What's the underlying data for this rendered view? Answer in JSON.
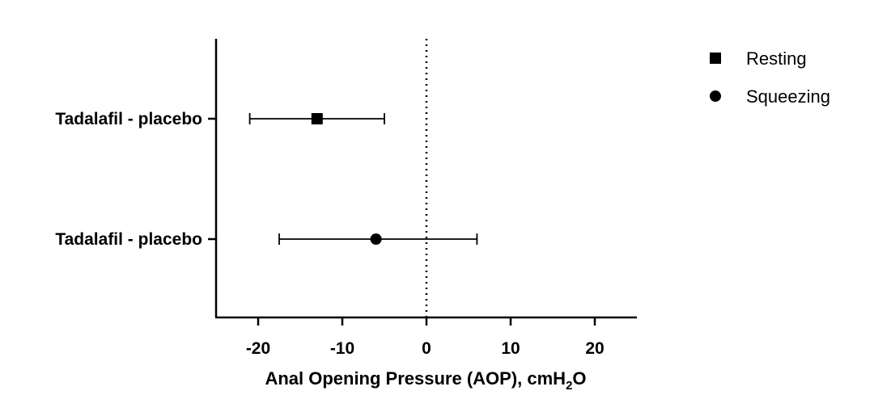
{
  "chart_data": {
    "type": "forest",
    "categories": [
      "Tadalafil - placebo",
      "Tadalafil - placebo"
    ],
    "series": [
      {
        "name": "Resting",
        "marker": "square",
        "estimate": -13,
        "ci_low": -21,
        "ci_high": -5
      },
      {
        "name": "Squeezing",
        "marker": "circle",
        "estimate": -6,
        "ci_low": -17.5,
        "ci_high": 6
      }
    ],
    "xlabel_main": "Anal Opening Pressure (AOP), cmH",
    "xlabel_sub": "2",
    "xlabel_tail": "O",
    "xlim": [
      -25,
      25
    ],
    "xticks": [
      -20,
      -10,
      0,
      10,
      20
    ],
    "reference_line": 0,
    "legend_position": "top-right",
    "grid": false
  }
}
